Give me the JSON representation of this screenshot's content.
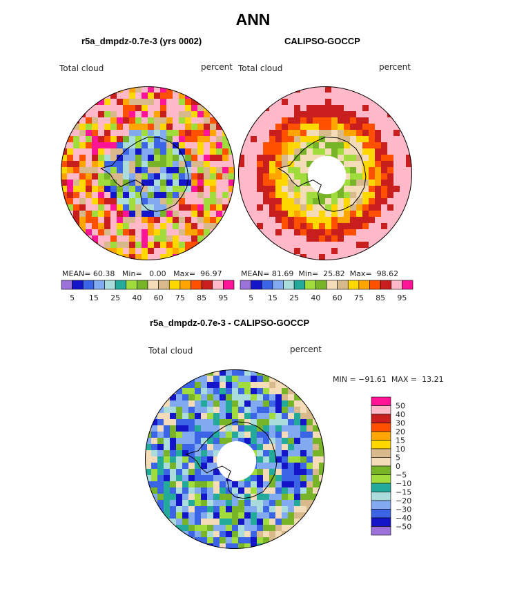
{
  "title": "ANN",
  "panels": [
    {
      "subtitle": "r5a_dmpdz-0.7e-3 (yrs 0002)",
      "field_label": "Total cloud",
      "units_label": "percent",
      "stats": {
        "mean_label": "MEAN=",
        "mean": "60.38",
        "min_label": "Min=",
        "min": "0.00",
        "max_label": "Max=",
        "max": "96.97"
      }
    },
    {
      "subtitle": "CALIPSO-GOCCP",
      "field_label": "Total cloud",
      "units_label": "percent",
      "stats": {
        "mean_label": "MEAN=",
        "mean": "81.69",
        "min_label": "Min=",
        "min": "25.82",
        "max_label": "Max=",
        "max": "98.62"
      }
    },
    {
      "subtitle": "r5a_dmpdz-0.7e-3 - CALIPSO-GOCCP",
      "field_label": "Total cloud",
      "units_label": "percent",
      "minmax_text": "MIN = −91.61  MAX =  13.21"
    }
  ],
  "chart_data": [
    {
      "type": "heatmap",
      "title": "r5a_dmpdz-0.7e-3 (yrs 0002)",
      "variable": "Total cloud",
      "units": "percent",
      "projection": "south polar stereographic",
      "mean": 60.38,
      "min": 0.0,
      "max": 96.97,
      "colorbar_levels": [
        5,
        10,
        15,
        20,
        25,
        30,
        40,
        50,
        60,
        70,
        75,
        80,
        85,
        90,
        95
      ],
      "colorbar_tick_labels": [
        "5",
        "15",
        "25",
        "40",
        "60",
        "75",
        "85",
        "95"
      ],
      "colorbar_colors": [
        "#9a72d8",
        "#1414c8",
        "#3c64e6",
        "#82aaf0",
        "#aadcdc",
        "#23aa9b",
        "#a0dc3c",
        "#78b428",
        "#f5dcb9",
        "#d7b98c",
        "#ffd800",
        "#ffa500",
        "#ff5000",
        "#c81e1e",
        "#ffb9c8",
        "#ff1496"
      ]
    },
    {
      "type": "heatmap",
      "title": "CALIPSO-GOCCP",
      "variable": "Total cloud",
      "units": "percent",
      "projection": "south polar stereographic",
      "mean": 81.69,
      "min": 25.82,
      "max": 98.62,
      "colorbar_levels": [
        5,
        10,
        15,
        20,
        25,
        30,
        40,
        50,
        60,
        70,
        75,
        80,
        85,
        90,
        95
      ],
      "colorbar_tick_labels": [
        "5",
        "15",
        "25",
        "40",
        "60",
        "75",
        "85",
        "95"
      ],
      "colorbar_colors": [
        "#9a72d8",
        "#1414c8",
        "#3c64e6",
        "#82aaf0",
        "#aadcdc",
        "#23aa9b",
        "#a0dc3c",
        "#78b428",
        "#f5dcb9",
        "#d7b98c",
        "#ffd800",
        "#ffa500",
        "#ff5000",
        "#c81e1e",
        "#ffb9c8",
        "#ff1496"
      ]
    },
    {
      "type": "heatmap",
      "title": "r5a_dmpdz-0.7e-3 - CALIPSO-GOCCP",
      "variable": "Total cloud",
      "units": "percent",
      "projection": "south polar stereographic",
      "min": -91.61,
      "max": 13.21,
      "colorbar_tick_labels": [
        "50",
        "40",
        "30",
        "20",
        "15",
        "10",
        "5",
        "0",
        "−5",
        "−10",
        "−15",
        "−20",
        "−30",
        "−40",
        "−50"
      ],
      "colorbar_colors": [
        "#ff1496",
        "#ffb9c8",
        "#c81e1e",
        "#ff5000",
        "#ffa500",
        "#ffd800",
        "#d7b98c",
        "#f5dcb9",
        "#78b428",
        "#a0dc3c",
        "#23aa9b",
        "#aadcdc",
        "#82aaf0",
        "#3c64e6",
        "#1414c8",
        "#9a72d8"
      ]
    }
  ],
  "colors": {
    "land_outline": "#000000",
    "no_data": "#ffffff"
  }
}
